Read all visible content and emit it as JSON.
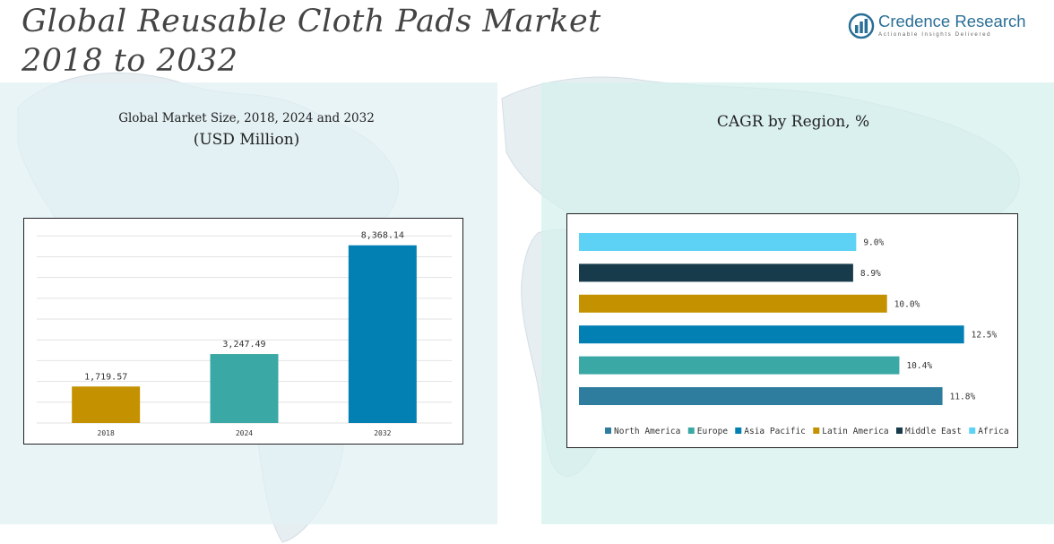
{
  "page": {
    "title_line1": "Global Reusable Cloth Pads Market",
    "title_line2": "2018 to 2032"
  },
  "brand": {
    "name": "Credence Research",
    "tagline": "Actionable Insights Delivered",
    "color": "#2a6f97"
  },
  "chart_data": [
    {
      "type": "bar",
      "title": "Global Market Size, 2018, 2024 and 2032",
      "subtitle": "(USD Million)",
      "categories": [
        "2018",
        "2024",
        "2032"
      ],
      "values": [
        1719.57,
        3247.49,
        8368.14
      ],
      "value_labels": [
        "1,719.57",
        "3,247.49",
        "8,368.14"
      ],
      "colors": [
        "#c49200",
        "#3aa8a5",
        "#0280b4"
      ],
      "ylim": [
        0,
        9200
      ],
      "grid": true
    },
    {
      "type": "bar",
      "orientation": "horizontal",
      "title": "CAGR by Region, %",
      "categories": [
        "North America",
        "Europe",
        "Asia Pacific",
        "Latin America",
        "Middle East",
        "Africa"
      ],
      "values": [
        11.8,
        10.4,
        12.5,
        10.0,
        8.9,
        9.0
      ],
      "value_labels": [
        "11.8%",
        "10.4%",
        "12.5%",
        "10.0%",
        "8.9%",
        "9.0%"
      ],
      "colors": [
        "#2e7d9e",
        "#3aa8a5",
        "#0280b4",
        "#c49200",
        "#173b4a",
        "#5ed2f5"
      ],
      "xlim": [
        0,
        13.5
      ],
      "legend": "bottom",
      "grid": false
    }
  ]
}
